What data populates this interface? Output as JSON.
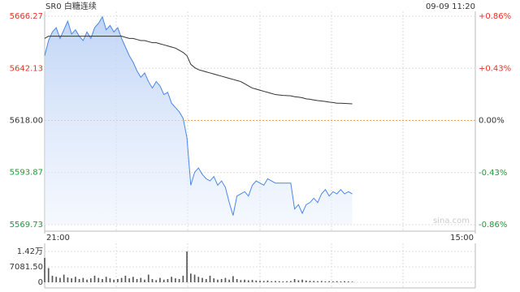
{
  "chart_data": {
    "type": "intraday",
    "title": "SR0 白糖连续",
    "timestamp": "09-09 11:20",
    "watermark": "sina.com",
    "price_color": "#4a86e8",
    "avg_color": "#333333",
    "up_color": "#e8302a",
    "down_color": "#1f9a3a",
    "volume_color": "#555555",
    "grid": true,
    "xlim": [
      0,
      112
    ],
    "xticks": [
      {
        "value": 0,
        "label": "21:00"
      },
      {
        "value": 112,
        "label": "15:00"
      }
    ],
    "ylim": [
      5569.73,
      5666.27
    ],
    "yticks": [
      5666.27,
      5642.13,
      {
        "value": 5618,
        "label": "5618.00"
      },
      5593.87,
      5569.73
    ],
    "y2lim": [
      -0.86,
      0.86
    ],
    "y2ticks": [
      {
        "value": 0.86,
        "label": "+0.86%"
      },
      {
        "value": 0.43,
        "label": "+0.43%"
      },
      {
        "value": 0,
        "label": "0.00%"
      },
      {
        "value": -0.43,
        "label": "-0.43%"
      },
      {
        "value": -0.86,
        "label": "-0.86%"
      }
    ],
    "series": [
      {
        "name": "price",
        "values": [
          5648,
          5655,
          5659,
          5661,
          5656,
          5660,
          5664,
          5658,
          5660,
          5657,
          5655,
          5659,
          5656,
          5661,
          5663,
          5666,
          5660,
          5662,
          5659,
          5661,
          5656,
          5652,
          5648,
          5645,
          5641,
          5638,
          5640,
          5636,
          5633,
          5636,
          5634,
          5630,
          5631,
          5626,
          5624,
          5622,
          5619,
          5610,
          5588,
          5594,
          5596,
          5593,
          5591,
          5590,
          5592,
          5588,
          5590,
          5587,
          5580,
          5574,
          5583,
          5584,
          5585,
          5583,
          5588,
          5590,
          5589,
          5588,
          5591,
          5590,
          5589,
          5589,
          5589,
          5589,
          5589,
          5577,
          5579,
          5575,
          5579,
          5580,
          5582,
          5580,
          5584,
          5586,
          5583,
          5585,
          5584,
          5586,
          5584,
          5585,
          5584
        ]
      },
      {
        "name": "average",
        "values": [
          5656,
          5657,
          5657,
          5657,
          5657,
          5657,
          5657,
          5657,
          5657,
          5657,
          5657,
          5657,
          5657,
          5657,
          5657,
          5657,
          5657,
          5657,
          5657,
          5657,
          5657,
          5656.5,
          5656,
          5656,
          5655.5,
          5655,
          5655,
          5654.5,
          5654,
          5654,
          5653.5,
          5653,
          5652.5,
          5652,
          5651.5,
          5650.5,
          5649.5,
          5648,
          5644,
          5642.5,
          5641.5,
          5641,
          5640.5,
          5640,
          5639.5,
          5639,
          5638.5,
          5638,
          5637.5,
          5637,
          5636.5,
          5636,
          5635,
          5634,
          5633,
          5632.5,
          5632,
          5631.5,
          5631,
          5630.5,
          5630,
          5629.8,
          5629.6,
          5629.5,
          5629.4,
          5629,
          5628.8,
          5628.5,
          5628,
          5627.8,
          5627.5,
          5627.2,
          5627,
          5626.8,
          5626.5,
          5626.3,
          5626,
          5626,
          5625.9,
          5625.8,
          5625.7
        ]
      }
    ],
    "volume": {
      "values": [
        11200,
        6500,
        3000,
        2500,
        2000,
        3500,
        2200,
        1800,
        2500,
        1500,
        2000,
        1200,
        1800,
        3000,
        2000,
        1500,
        2500,
        1800,
        1200,
        1500,
        2000,
        3000,
        1800,
        2500,
        1500,
        2000,
        1200,
        3500,
        1500,
        1000,
        2000,
        1200,
        1500,
        2500,
        1800,
        1500,
        3000,
        14163,
        4000,
        3500,
        2500,
        2000,
        1500,
        3000,
        1800,
        1200,
        1500,
        2000,
        1200,
        2800,
        1500,
        1000,
        1200,
        900,
        1100,
        800,
        700,
        600,
        800,
        500,
        600,
        500,
        400,
        500,
        600,
        1500,
        900,
        1200,
        800,
        700,
        600,
        500,
        600,
        400,
        500,
        400,
        500,
        400,
        500,
        400,
        300
      ],
      "ylim": [
        0,
        14163
      ],
      "yticks": [
        {
          "value": 14163,
          "label": "1.42万"
        },
        {
          "value": 7081.5,
          "label": "7081.50"
        },
        0
      ]
    }
  }
}
